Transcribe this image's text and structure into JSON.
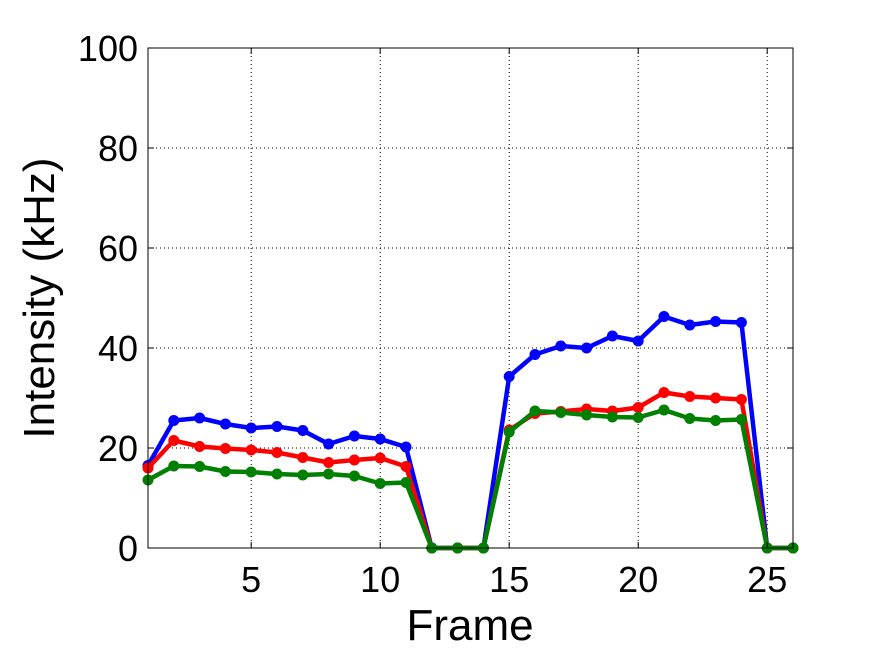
{
  "chart_data": {
    "type": "line",
    "title": "",
    "xlabel": "Frame",
    "ylabel": "Intensity (kHz)",
    "xlim": [
      1,
      26
    ],
    "ylim": [
      0,
      100
    ],
    "xticks": [
      5,
      10,
      15,
      20,
      25
    ],
    "yticks": [
      0,
      20,
      40,
      60,
      80,
      100
    ],
    "grid": true,
    "legend": "none",
    "x": [
      1,
      2,
      3,
      4,
      5,
      6,
      7,
      8,
      9,
      10,
      11,
      12,
      13,
      14,
      15,
      16,
      17,
      18,
      19,
      20,
      21,
      22,
      23,
      24,
      25,
      26
    ],
    "series": [
      {
        "color": "#0000ff",
        "values": [
          16.5,
          25.5,
          26.0,
          24.8,
          24.0,
          24.3,
          23.5,
          20.8,
          22.4,
          21.8,
          20.2,
          0,
          0,
          0,
          34.3,
          38.7,
          40.4,
          40.0,
          42.4,
          41.4,
          46.3,
          44.6,
          45.3,
          45.1,
          0,
          0
        ]
      },
      {
        "color": "#ff0000",
        "values": [
          16.0,
          21.5,
          20.3,
          19.9,
          19.6,
          19.1,
          18.1,
          17.1,
          17.6,
          18.0,
          16.3,
          0,
          0,
          0,
          23.6,
          26.9,
          27.3,
          27.8,
          27.4,
          28.1,
          31.1,
          30.3,
          30.0,
          29.7,
          0,
          0
        ]
      },
      {
        "color": "#008000",
        "values": [
          13.6,
          16.4,
          16.3,
          15.3,
          15.2,
          14.8,
          14.6,
          14.8,
          14.4,
          12.9,
          13.1,
          0,
          0,
          0,
          23.2,
          27.4,
          27.1,
          26.6,
          26.2,
          26.1,
          27.6,
          25.9,
          25.5,
          25.7,
          0,
          0
        ]
      }
    ]
  }
}
